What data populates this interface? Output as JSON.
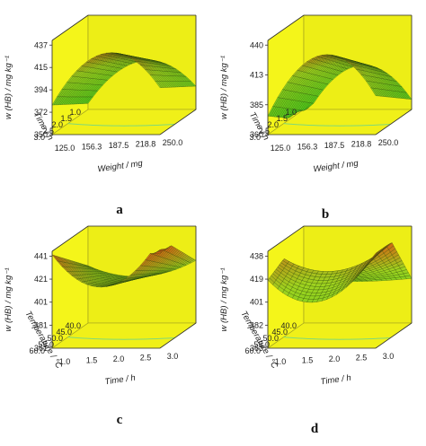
{
  "chart_data": [
    {
      "id": "a",
      "type": "surface",
      "panel_label": "a",
      "x_label": "Weight / mg",
      "y_label": "Time / h",
      "z_label": "w (HB) / mg kg⁻¹",
      "x_ticks": [
        "125.0",
        "156.3",
        "187.5",
        "218.8",
        "250.0"
      ],
      "y_ticks": [
        "1.0",
        "1.5",
        "2.0",
        "2.5",
        "3.0"
      ],
      "z_ticks": [
        "350",
        "372",
        "394",
        "415",
        "437"
      ],
      "x_range": [
        125.0,
        250.0
      ],
      "y_range": [
        1.0,
        3.0
      ],
      "z_range": [
        350,
        437
      ],
      "background_color": "#f4f51a",
      "surface_colors": [
        "#4cd01c",
        "#9fd21f",
        "#d65c12"
      ]
    },
    {
      "id": "b",
      "type": "surface",
      "panel_label": "b",
      "x_label": "Weight / mg",
      "y_label": "Time / h",
      "z_label": "w (HB) / mg kg⁻¹",
      "x_ticks": [
        "125.0",
        "156.3",
        "187.5",
        "218.8",
        "250.0"
      ],
      "y_ticks": [
        "1.0",
        "1.5",
        "2.0",
        "2.5",
        "3.0"
      ],
      "z_ticks": [
        "360",
        "385",
        "413",
        "440"
      ],
      "x_range": [
        125.0,
        250.0
      ],
      "y_range": [
        1.0,
        3.0
      ],
      "z_range": [
        360,
        440
      ],
      "background_color": "#f4f51a",
      "surface_colors": [
        "#4cd01c",
        "#9fd21f",
        "#d65c12"
      ]
    },
    {
      "id": "c",
      "type": "surface",
      "panel_label": "c",
      "x_label": "Time / h",
      "y_label": "Temperature / °C",
      "z_label": "w (HB) / mg kg⁻¹",
      "x_ticks": [
        "1.0",
        "1.5",
        "2.0",
        "2.5",
        "3.0"
      ],
      "y_ticks": [
        "40.0",
        "45.0",
        "50.0",
        "55.0",
        "60.0"
      ],
      "z_ticks": [
        "361",
        "381",
        "401",
        "421",
        "441"
      ],
      "x_range": [
        1.0,
        3.0
      ],
      "y_range": [
        40.0,
        60.0
      ],
      "z_range": [
        361,
        441
      ],
      "background_color": "#f4f51a",
      "surface_colors": [
        "#4cd01c",
        "#9fd21f",
        "#d65c12"
      ]
    },
    {
      "id": "d",
      "type": "surface",
      "panel_label": "d",
      "x_label": "Time / h",
      "y_label": "Temperature / °C",
      "z_label": "w (HB) / mg kg⁻¹",
      "x_ticks": [
        "1.0",
        "1.5",
        "2.0",
        "2.5",
        "3.0"
      ],
      "y_ticks": [
        "40.0",
        "45.0",
        "50.0",
        "55.0",
        "60.0"
      ],
      "z_ticks": [
        "363",
        "382",
        "401",
        "419",
        "438"
      ],
      "x_range": [
        1.0,
        3.0
      ],
      "y_range": [
        40.0,
        60.0
      ],
      "z_range": [
        363,
        438
      ],
      "background_color": "#f4f51a",
      "surface_colors": [
        "#4cd01c",
        "#9fd21f",
        "#d65c12"
      ]
    }
  ]
}
